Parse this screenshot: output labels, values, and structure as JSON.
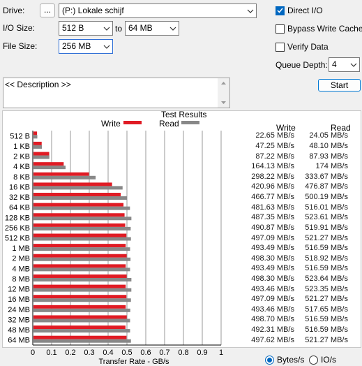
{
  "drive": {
    "label": "Drive:",
    "browse_label": "...",
    "value": "(P:) Lokale schijf"
  },
  "io_size": {
    "label": "I/O Size:",
    "from": "512 B",
    "to_label": "to",
    "to": "64 MB"
  },
  "file_size": {
    "label": "File Size:",
    "value": "256 MB"
  },
  "options": {
    "direct_io": {
      "label": "Direct I/O",
      "checked": true
    },
    "bypass_write_cache": {
      "label": "Bypass Write Cache",
      "checked": false
    },
    "verify_data": {
      "label": "Verify Data",
      "checked": false
    }
  },
  "queue_depth": {
    "label": "Queue Depth:",
    "value": "4"
  },
  "start_label": "Start",
  "description": {
    "text": "<< Description >>"
  },
  "results": {
    "title": "Test Results",
    "legend_write": "Write",
    "legend_read": "Read",
    "col_write": "Write",
    "col_read": "Read",
    "write_values": [
      "22.65 MB/s",
      "47.25 MB/s",
      "87.22 MB/s",
      "164.13 MB/s",
      "298.22 MB/s",
      "420.96 MB/s",
      "466.77 MB/s",
      "481.63 MB/s",
      "487.35 MB/s",
      "490.87 MB/s",
      "497.09 MB/s",
      "493.49 MB/s",
      "498.30 MB/s",
      "493.49 MB/s",
      "498.30 MB/s",
      "493.46 MB/s",
      "497.09 MB/s",
      "493.46 MB/s",
      "498.70 MB/s",
      "492.31 MB/s",
      "497.62 MB/s"
    ],
    "read_values": [
      "24.05 MB/s",
      "48.10 MB/s",
      "87.93 MB/s",
      "174 MB/s",
      "333.67 MB/s",
      "476.87 MB/s",
      "500.19 MB/s",
      "516.01 MB/s",
      "523.61 MB/s",
      "519.91 MB/s",
      "521.27 MB/s",
      "516.59 MB/s",
      "518.92 MB/s",
      "516.59 MB/s",
      "523.64 MB/s",
      "523.35 MB/s",
      "521.27 MB/s",
      "517.65 MB/s",
      "516.59 MB/s",
      "516.59 MB/s",
      "521.27 MB/s"
    ]
  },
  "display_mode": {
    "bytes_label": "Bytes/s",
    "io_label": "IO/s",
    "selected": "Bytes/s"
  },
  "chart_data": {
    "type": "bar",
    "orientation": "horizontal",
    "xlabel": "Transfer Rate - GB/s",
    "xlim": [
      0,
      1
    ],
    "x_ticks": [
      "0",
      "0.1",
      "0.2",
      "0.3",
      "0.4",
      "0.5",
      "0.6",
      "0.7",
      "0.8",
      "0.9",
      "1"
    ],
    "grid": true,
    "categories": [
      "512 B",
      "1 KB",
      "2 KB",
      "4 KB",
      "8 KB",
      "16 KB",
      "32 KB",
      "64 KB",
      "128 KB",
      "256 KB",
      "512 KB",
      "1 MB",
      "2 MB",
      "4 MB",
      "8 MB",
      "12 MB",
      "16 MB",
      "24 MB",
      "32 MB",
      "48 MB",
      "64 MB"
    ],
    "series": [
      {
        "name": "Write",
        "color": "#e01b24",
        "values": [
          0.02265,
          0.04725,
          0.08722,
          0.16413,
          0.29822,
          0.42096,
          0.46677,
          0.48163,
          0.48735,
          0.49087,
          0.49709,
          0.49349,
          0.4983,
          0.49349,
          0.4983,
          0.49346,
          0.49709,
          0.49346,
          0.4987,
          0.49231,
          0.49762
        ]
      },
      {
        "name": "Read",
        "color": "#888888",
        "values": [
          0.02405,
          0.0481,
          0.08793,
          0.174,
          0.33367,
          0.47687,
          0.50019,
          0.51601,
          0.52361,
          0.51991,
          0.52127,
          0.51659,
          0.51892,
          0.51659,
          0.52364,
          0.52335,
          0.52127,
          0.51765,
          0.51659,
          0.51659,
          0.52127
        ]
      }
    ]
  }
}
